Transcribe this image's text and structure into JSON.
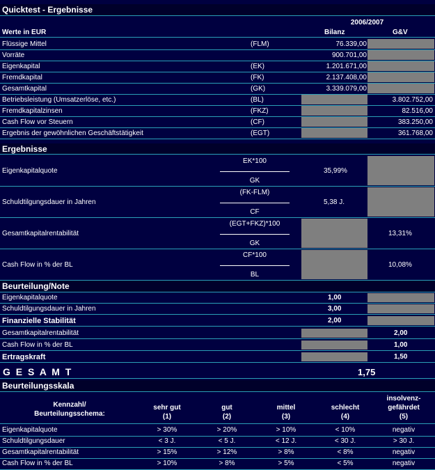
{
  "title": "Quicktest - Ergebnisse",
  "period": "2006/2007",
  "unit_label": "Werte in EUR",
  "col_bilanz": "Bilanz",
  "col_guv": "G&V",
  "inputs": [
    {
      "label": "Flüssige Mittel",
      "abbr": "(FLM)",
      "bilanz": "76.339,00",
      "guv": ""
    },
    {
      "label": "Vorräte",
      "abbr": "",
      "bilanz": "900.701,00",
      "guv": ""
    },
    {
      "label": "Eigenkapital",
      "abbr": "(EK)",
      "bilanz": "1.201.671,00",
      "guv": ""
    },
    {
      "label": "Fremdkapital",
      "abbr": "(FK)",
      "bilanz": "2.137.408,00",
      "guv": ""
    },
    {
      "label": "Gesamtkapital",
      "abbr": "(GK)",
      "bilanz": "3.339.079,00",
      "guv": ""
    },
    {
      "label": "Betriebsleistung (Umsatzerlöse, etc.)",
      "abbr": "(BL)",
      "bilanz": "",
      "guv": "3.802.752,00"
    },
    {
      "label": "Fremdkapitalzinsen",
      "abbr": "(FKZ)",
      "bilanz": "",
      "guv": "82.516,00"
    },
    {
      "label": "Cash Flow vor Steuern",
      "abbr": "(CF)",
      "bilanz": "",
      "guv": "383.250,00"
    },
    {
      "label": "Ergebnis der gewöhnlichen Geschäftstätigkeit",
      "abbr": "(EGT)",
      "bilanz": "",
      "guv": "361.768,00"
    }
  ],
  "results_title": "Ergebnisse",
  "results": [
    {
      "label": "Eigenkapitalquote",
      "num": "EK*100",
      "den": "GK",
      "bilanz": "35,99%",
      "guv": ""
    },
    {
      "label": "Schuldtilgungsdauer in Jahren",
      "num": "(FK-FLM)",
      "den": "CF",
      "bilanz": "5,38 J.",
      "guv": ""
    },
    {
      "label": "Gesamtkapitalrentabilität",
      "num": "(EGT+FKZ)*100",
      "den": "GK",
      "bilanz": "",
      "guv": "13,31%"
    },
    {
      "label": "Cash Flow in % der BL",
      "num": "CF*100",
      "den": "BL",
      "bilanz": "",
      "guv": "10,08%"
    }
  ],
  "rating_title": "Beurteilung/Note",
  "ratings": [
    {
      "label": "Eigenkapitalquote",
      "bilanz": "1,00",
      "guv": ""
    },
    {
      "label": "Schuldtilgungsdauer in Jahren",
      "bilanz": "3,00",
      "guv": ""
    },
    {
      "label": "Finanzielle Stabilität",
      "bilanz": "2,00",
      "guv": ""
    },
    {
      "label": "Gesamtkapitalrentabilität",
      "bilanz": "",
      "guv": "2,00"
    },
    {
      "label": "Cash Flow in % der BL",
      "bilanz": "",
      "guv": "1,00"
    },
    {
      "label": "Ertragskraft",
      "bilanz": "",
      "guv": "1,50"
    }
  ],
  "total_label": "G E S A M T",
  "total_value": "1,75",
  "scale_title": "Beurteilungsskala",
  "scale_header": {
    "first_line1": "Kennzahl/",
    "first_line2": "Beurteilungsschema:",
    "cols": [
      {
        "l1": "",
        "l2": "sehr gut",
        "l3": "(1)"
      },
      {
        "l1": "",
        "l2": "gut",
        "l3": "(2)"
      },
      {
        "l1": "",
        "l2": "mittel",
        "l3": "(3)"
      },
      {
        "l1": "",
        "l2": "schlecht",
        "l3": "(4)"
      },
      {
        "l1": "insolvenz-",
        "l2": "gefährdet",
        "l3": "(5)"
      }
    ]
  },
  "scale_rows": [
    {
      "label": "Eigenkapitalquote",
      "v": [
        "> 30%",
        "> 20%",
        "> 10%",
        "< 10%",
        "negativ"
      ]
    },
    {
      "label": "Schuldtilgungsdauer",
      "v": [
        "< 3 J.",
        "< 5 J.",
        "< 12 J.",
        "< 30 J.",
        "> 30 J."
      ]
    },
    {
      "label": "Gesamtkapitalrentabilität",
      "v": [
        "> 15%",
        "> 12%",
        "> 8%",
        "< 8%",
        "negativ"
      ]
    },
    {
      "label": "Cash Flow in % der BL",
      "v": [
        "> 10%",
        "> 8%",
        "> 5%",
        "< 5%",
        "negativ"
      ]
    }
  ]
}
